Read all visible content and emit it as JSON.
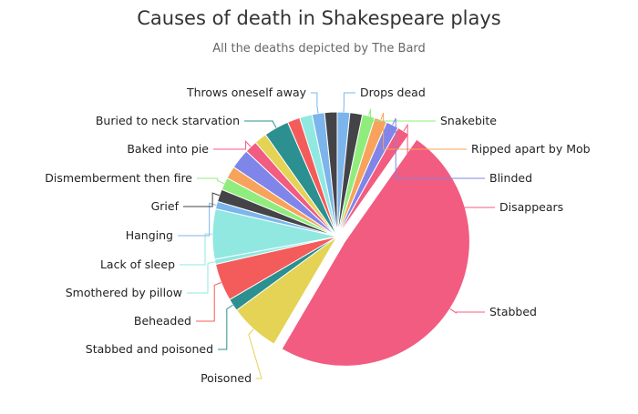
{
  "chart_data": {
    "type": "pie",
    "title": "Causes of death in Shakespeare plays",
    "subtitle": "All the deaths depicted by The Bard",
    "slices": [
      {
        "name": "Drops dead",
        "value": 1,
        "color": "#7cb5ec",
        "labeled": true
      },
      {
        "name": "",
        "value": 1,
        "color": "#434348",
        "labeled": false
      },
      {
        "name": "Snakebite",
        "value": 1,
        "color": "#90ed7d",
        "labeled": true
      },
      {
        "name": "Ripped apart by Mob",
        "value": 1,
        "color": "#f7a35c",
        "labeled": true
      },
      {
        "name": "Blinded",
        "value": 1,
        "color": "#8085e9",
        "labeled": true
      },
      {
        "name": "Disappears",
        "value": 1,
        "color": "#f15c80",
        "labeled": true
      },
      {
        "name": "Stabbed",
        "value": 30,
        "color": "#f15c80",
        "labeled": true
      },
      {
        "name": "Poisoned",
        "value": 4,
        "color": "#e4d354",
        "labeled": true
      },
      {
        "name": "Stabbed and poisoned",
        "value": 1,
        "color": "#2b908f",
        "labeled": true
      },
      {
        "name": "Beheaded",
        "value": 3,
        "color": "#f45b5b",
        "labeled": true
      },
      {
        "name": "Smothered by pillow",
        "value": 0.4,
        "color": "#91e8e1",
        "labeled": true
      },
      {
        "name": "Lack of sleep",
        "value": 4,
        "color": "#91e8e1",
        "labeled": true
      },
      {
        "name": "Hanging",
        "value": 0.6,
        "color": "#7cb5ec",
        "labeled": true
      },
      {
        "name": "Grief",
        "value": 1,
        "color": "#434348",
        "labeled": true
      },
      {
        "name": "Dismemberment then fire",
        "value": 1,
        "color": "#90ed7d",
        "labeled": true
      },
      {
        "name": "",
        "value": 1,
        "color": "#f7a35c",
        "labeled": false
      },
      {
        "name": "",
        "value": 1.6,
        "color": "#8085e9",
        "labeled": false
      },
      {
        "name": "Baked into pie",
        "value": 1,
        "color": "#f15c80",
        "labeled": true
      },
      {
        "name": "",
        "value": 1,
        "color": "#e4d354",
        "labeled": false
      },
      {
        "name": "Buried to neck starvation",
        "value": 2,
        "color": "#2b908f",
        "labeled": true
      },
      {
        "name": "",
        "value": 1,
        "color": "#f45b5b",
        "labeled": false
      },
      {
        "name": "",
        "value": 1,
        "color": "#91e8e1",
        "labeled": false
      },
      {
        "name": "Throws oneself away",
        "value": 1,
        "color": "#7cb5ec",
        "labeled": true
      },
      {
        "name": "",
        "value": 1,
        "color": "#434348",
        "labeled": false
      }
    ]
  }
}
